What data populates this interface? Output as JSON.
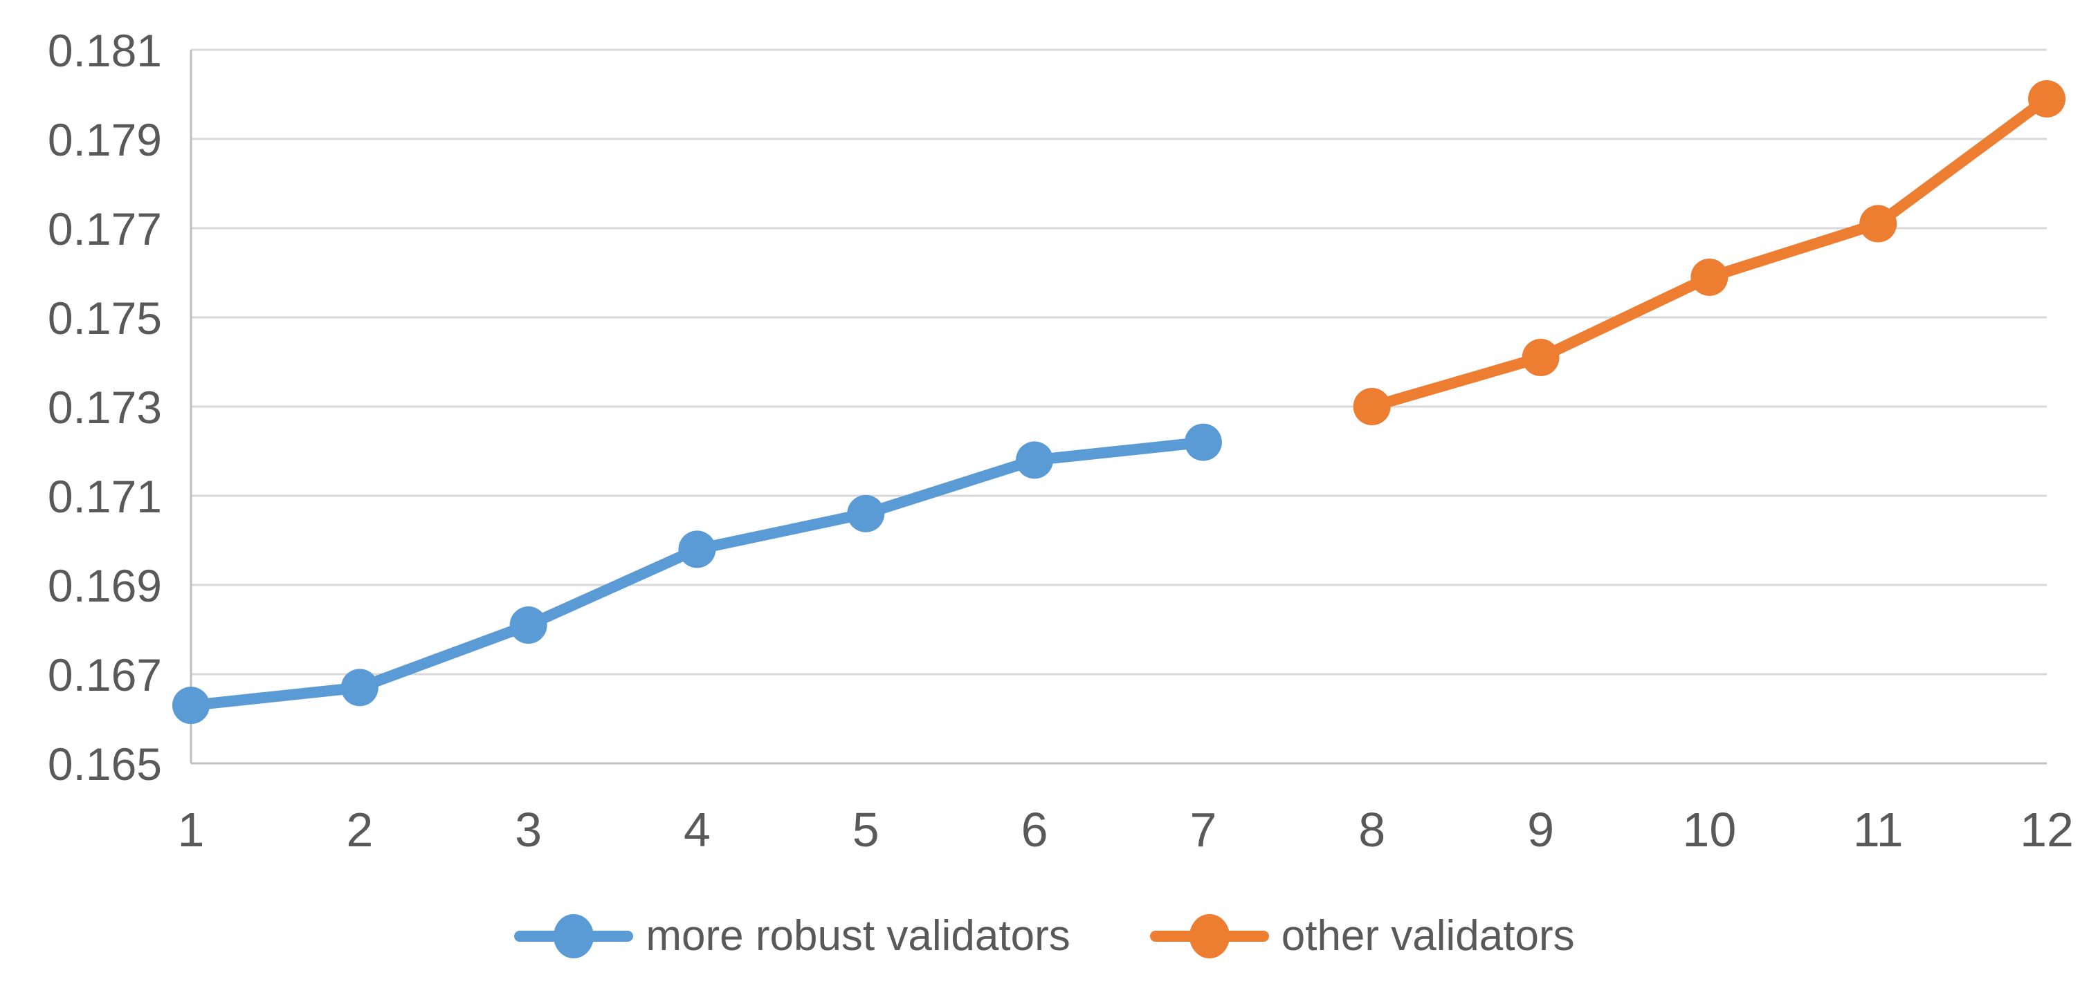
{
  "chart_data": {
    "type": "line",
    "title": "",
    "xlabel": "",
    "ylabel": "",
    "background": "#FFFFFF",
    "grid": true,
    "legend_position": "bottom",
    "axis_text_color": "#595959",
    "gridline_color": "#D9D9D9",
    "axis_line_color": "#BFBFBF",
    "ylim": [
      0.165,
      0.181
    ],
    "y_tick_step": 0.002,
    "y_tick_labels": [
      "0.165",
      "0.167",
      "0.169",
      "0.171",
      "0.173",
      "0.175",
      "0.177",
      "0.179",
      "0.181"
    ],
    "x_ticks": [
      1,
      2,
      3,
      4,
      5,
      6,
      7,
      8,
      9,
      10,
      11,
      12
    ],
    "series": [
      {
        "name": "more robust validators",
        "color": "#5B9BD5",
        "x": [
          1,
          2,
          3,
          4,
          5,
          6,
          7
        ],
        "values": [
          0.1663,
          0.1667,
          0.1681,
          0.1698,
          0.1706,
          0.1718,
          0.1722
        ]
      },
      {
        "name": "other validators",
        "color": "#ED7D31",
        "x": [
          8,
          9,
          10,
          11,
          12
        ],
        "values": [
          0.173,
          0.1741,
          0.1759,
          0.1771,
          0.1799
        ]
      }
    ]
  }
}
